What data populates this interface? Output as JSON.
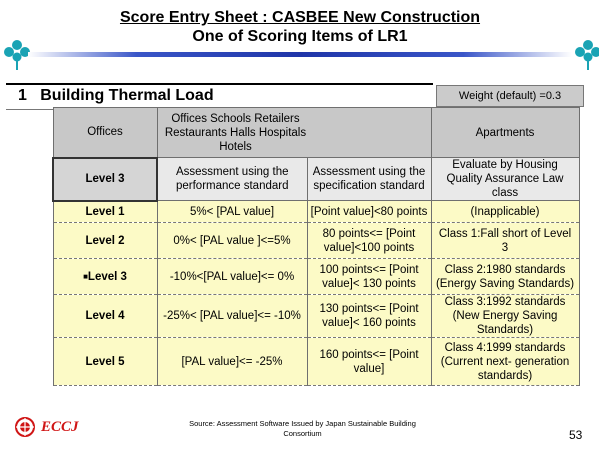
{
  "header": {
    "title_line1": "Score Entry Sheet : CASBEE New Construction",
    "title_line2": "One of Scoring Items of LR1"
  },
  "section": {
    "number": "1",
    "title": "Building Thermal Load",
    "weight": "Weight (default) =0.3"
  },
  "table": {
    "header": {
      "offices": "Offices",
      "offices_types": "Offices Schools Retailers Restaurants Halls Hospitals Hotels",
      "apartments": "Apartments"
    },
    "level3_row": {
      "label": "Level 3",
      "performance": "Assessment using the performance standard",
      "specification": "Assessment using the specification standard",
      "apartments": "Evaluate by Housing Quality Assurance Law class"
    },
    "rows": [
      {
        "level": "Level 1",
        "selected": false,
        "performance": "5%< [PAL value]",
        "specification": "[Point value]<80 points",
        "apartments": "(Inapplicable)"
      },
      {
        "level": "Level 2",
        "selected": false,
        "performance": "0%< [PAL value ]<=5%",
        "specification": "80 points<= [Point value]<100 points",
        "apartments": "Class 1:Fall short of Level 3"
      },
      {
        "level": "Level 3",
        "selected": true,
        "performance": "-10%<[PAL value]<= 0%",
        "specification": "100 points<= [Point value]< 130 points",
        "apartments": "Class 2:1980 standards (Energy Saving Standards)"
      },
      {
        "level": "Level 4",
        "selected": false,
        "performance": "-25%< [PAL value]<= -10%",
        "specification": "130 points<= [Point value]< 160 points",
        "apartments": "Class 3:1992 standards (New Energy Saving Standards)"
      },
      {
        "level": "Level 5",
        "selected": false,
        "performance": "[PAL value]<= -25%",
        "specification": "160 points<= [Point value]",
        "apartments": "Class 4:1999 standards (Current next- generation standards)"
      }
    ],
    "selected_marker": "■"
  },
  "footer": {
    "logo_text": "ECCJ",
    "source": "Source: Assessment Software Issued by Japan Sustainable Building Consortium",
    "page_number": "53"
  },
  "colors": {
    "accent_blue": "#1f35a8",
    "clover_teal": "#1aa3b4",
    "data_row_yellow": "#fcfac6",
    "header_gray": "#c8c8c8",
    "logo_red": "#d01515"
  },
  "icons": {
    "left_ornament": "clover-icon",
    "right_ornament": "clover-icon",
    "logo": "eccj-logo-icon"
  }
}
